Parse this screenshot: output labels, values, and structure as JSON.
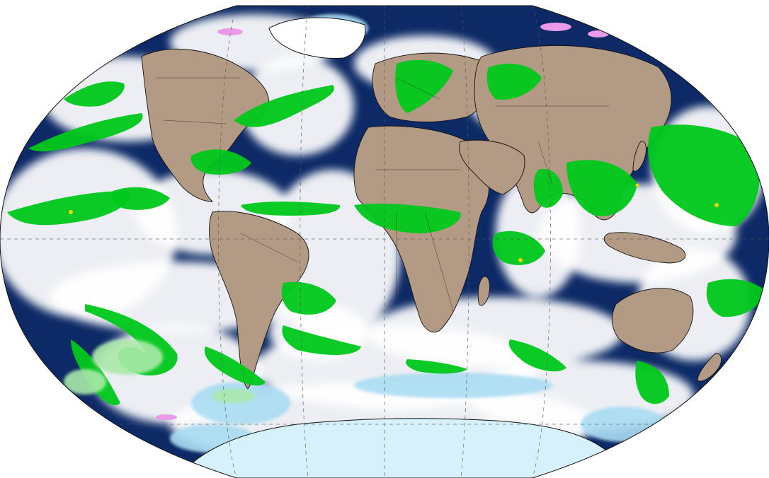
{
  "map": {
    "projection": "winkel-tripel",
    "view": "global",
    "layers": [
      "clouds",
      "precipitation",
      "land-surface",
      "coastlines",
      "country-borders",
      "graticule"
    ],
    "colors": {
      "background": "#ffffff",
      "ocean": "#0d2a66",
      "cloud": "#ffffff",
      "cloud_shadow": "#c7d0e4",
      "land": "#b39a84",
      "land_dark": "#8e7866",
      "precipitation": "#00c81b",
      "precipitation_light": "#a9e9a9",
      "heavy_precip": "#e8d700",
      "snow_ice": "#a9dcf2",
      "ice_light": "#d6f1fb",
      "frozen": "#ea9ae8",
      "coastline": "#111111",
      "graticule": "#555555"
    }
  }
}
